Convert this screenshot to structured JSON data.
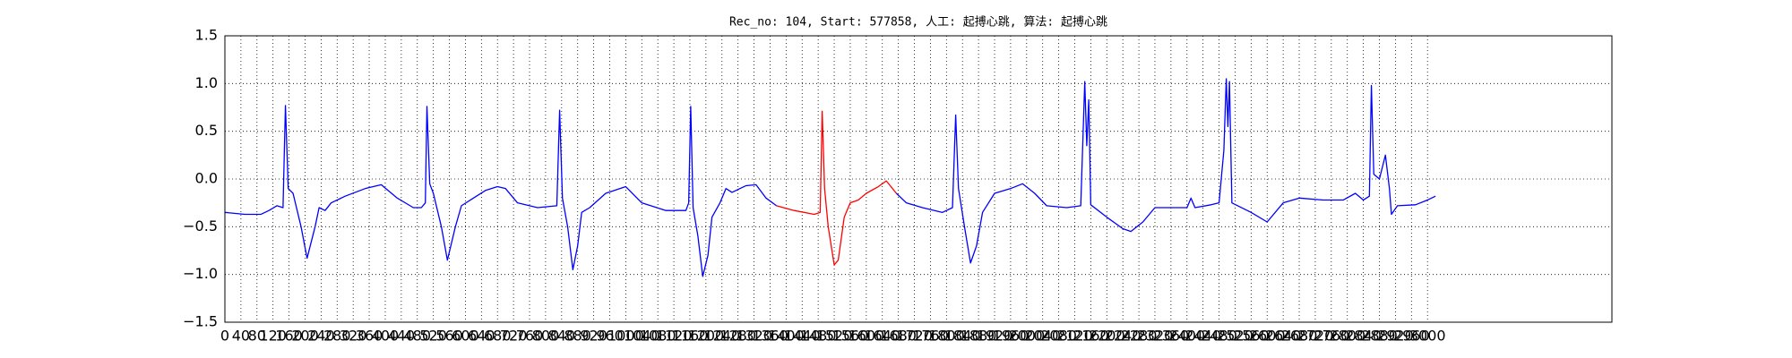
{
  "chart_data": {
    "type": "line",
    "title": "Rec_no: 104, Start: 577858, 人工: 起搏心跳, 算法: 起搏心跳",
    "grid": true,
    "xlim": [
      0,
      3460
    ],
    "ylim": [
      -1.5,
      1.5
    ],
    "xticks": [
      0,
      40,
      80,
      120,
      160,
      200,
      240,
      280,
      320,
      360,
      400,
      440,
      480,
      520,
      560,
      600,
      640,
      680,
      720,
      760,
      800,
      840,
      880,
      920,
      960,
      1000,
      1040,
      1080,
      1120,
      1160,
      1200,
      1240,
      1280,
      1320,
      1360,
      1400,
      1440,
      1480,
      1520,
      1560,
      1600,
      1640,
      1680,
      1720,
      1760,
      1800,
      1840,
      1880,
      1920,
      1960,
      2000,
      2040,
      2080,
      2120,
      2160,
      2200,
      2240,
      2280,
      2320,
      2360,
      2400,
      2440,
      2480,
      2520,
      2560,
      2600,
      2640,
      2680,
      2720,
      2760,
      2800,
      2840,
      2880,
      2920,
      2960,
      3000
    ],
    "yticks": [
      {
        "value": -1.5,
        "label": "−1.5"
      },
      {
        "value": -1.0,
        "label": "−1.0"
      },
      {
        "value": -0.5,
        "label": "−0.5"
      },
      {
        "value": 0,
        "label": "0.0"
      },
      0.5,
      {
        "value": 1.0,
        "label": "1.0"
      },
      1.5
    ],
    "series": [
      {
        "color": "#0000ff",
        "x": [
          0,
          50,
          90,
          110,
          130,
          145,
          151,
          158,
          170,
          190,
          205,
          225,
          235,
          250,
          265,
          300,
          350,
          390,
          430,
          470,
          490,
          500,
          504,
          511,
          520,
          540,
          555,
          575,
          590,
          620,
          650,
          680,
          700,
          730,
          780,
          828,
          835,
          842,
          855,
          868,
          880,
          890,
          910,
          950,
          1000,
          1040,
          1100,
          1150,
          1157,
          1162,
          1168,
          1180,
          1192,
          1205,
          1215,
          1235,
          1250,
          1265,
          1300,
          1325,
          1350,
          1376
        ],
        "values": [
          -0.35,
          -0.37,
          -0.37,
          -0.33,
          -0.28,
          -0.3,
          0.77,
          -0.1,
          -0.15,
          -0.5,
          -0.83,
          -0.5,
          -0.3,
          -0.33,
          -0.25,
          -0.18,
          -0.1,
          -0.06,
          -0.2,
          -0.3,
          -0.3,
          -0.25,
          0.76,
          -0.05,
          -0.15,
          -0.5,
          -0.85,
          -0.5,
          -0.28,
          -0.2,
          -0.12,
          -0.08,
          -0.1,
          -0.25,
          -0.3,
          -0.28,
          0.72,
          -0.2,
          -0.5,
          -0.95,
          -0.7,
          -0.35,
          -0.3,
          -0.15,
          -0.08,
          -0.25,
          -0.33,
          -0.33,
          -0.25,
          0.76,
          -0.3,
          -0.6,
          -1.02,
          -0.8,
          -0.4,
          -0.25,
          -0.1,
          -0.14,
          -0.07,
          -0.06,
          -0.2,
          -0.28
        ]
      },
      {
        "color": "#ff0000",
        "x": [
          1376,
          1420,
          1470,
          1485,
          1490,
          1496,
          1505,
          1520,
          1530,
          1545,
          1560,
          1580,
          1600,
          1630,
          1650,
          1675
        ],
        "values": [
          -0.28,
          -0.33,
          -0.37,
          -0.35,
          0.71,
          -0.1,
          -0.5,
          -0.9,
          -0.85,
          -0.4,
          -0.25,
          -0.22,
          -0.15,
          -0.08,
          -0.02,
          -0.15
        ]
      },
      {
        "color": "#0000ff",
        "x": [
          1675,
          1700,
          1740,
          1790,
          1815,
          1823,
          1830,
          1845,
          1860,
          1875,
          1890,
          1920,
          1960,
          1990,
          2020,
          2050,
          2100,
          2135,
          2145,
          2150,
          2155,
          2160,
          2200,
          2240,
          2260,
          2290,
          2320,
          2360,
          2400,
          2410,
          2420,
          2460,
          2480,
          2492,
          2498,
          2502,
          2506,
          2512,
          2560,
          2600,
          2640,
          2680,
          2740,
          2790,
          2820,
          2840,
          2855,
          2860,
          2866,
          2880,
          2895,
          2905,
          2910,
          2925,
          2970,
          3000,
          3020
        ],
        "values": [
          -0.15,
          -0.25,
          -0.3,
          -0.35,
          -0.3,
          0.67,
          -0.1,
          -0.5,
          -0.88,
          -0.7,
          -0.35,
          -0.15,
          -0.1,
          -0.05,
          -0.15,
          -0.28,
          -0.3,
          -0.28,
          1.02,
          0.35,
          0.83,
          -0.27,
          -0.4,
          -0.52,
          -0.55,
          -0.45,
          -0.3,
          -0.3,
          -0.3,
          -0.2,
          -0.3,
          -0.27,
          -0.25,
          0.3,
          1.05,
          0.55,
          1.02,
          -0.25,
          -0.35,
          -0.45,
          -0.25,
          -0.2,
          -0.22,
          -0.22,
          -0.15,
          -0.22,
          -0.18,
          0.98,
          0.05,
          0.0,
          0.25,
          -0.1,
          -0.37,
          -0.28,
          -0.27,
          -0.22,
          -0.18
        ]
      }
    ]
  }
}
